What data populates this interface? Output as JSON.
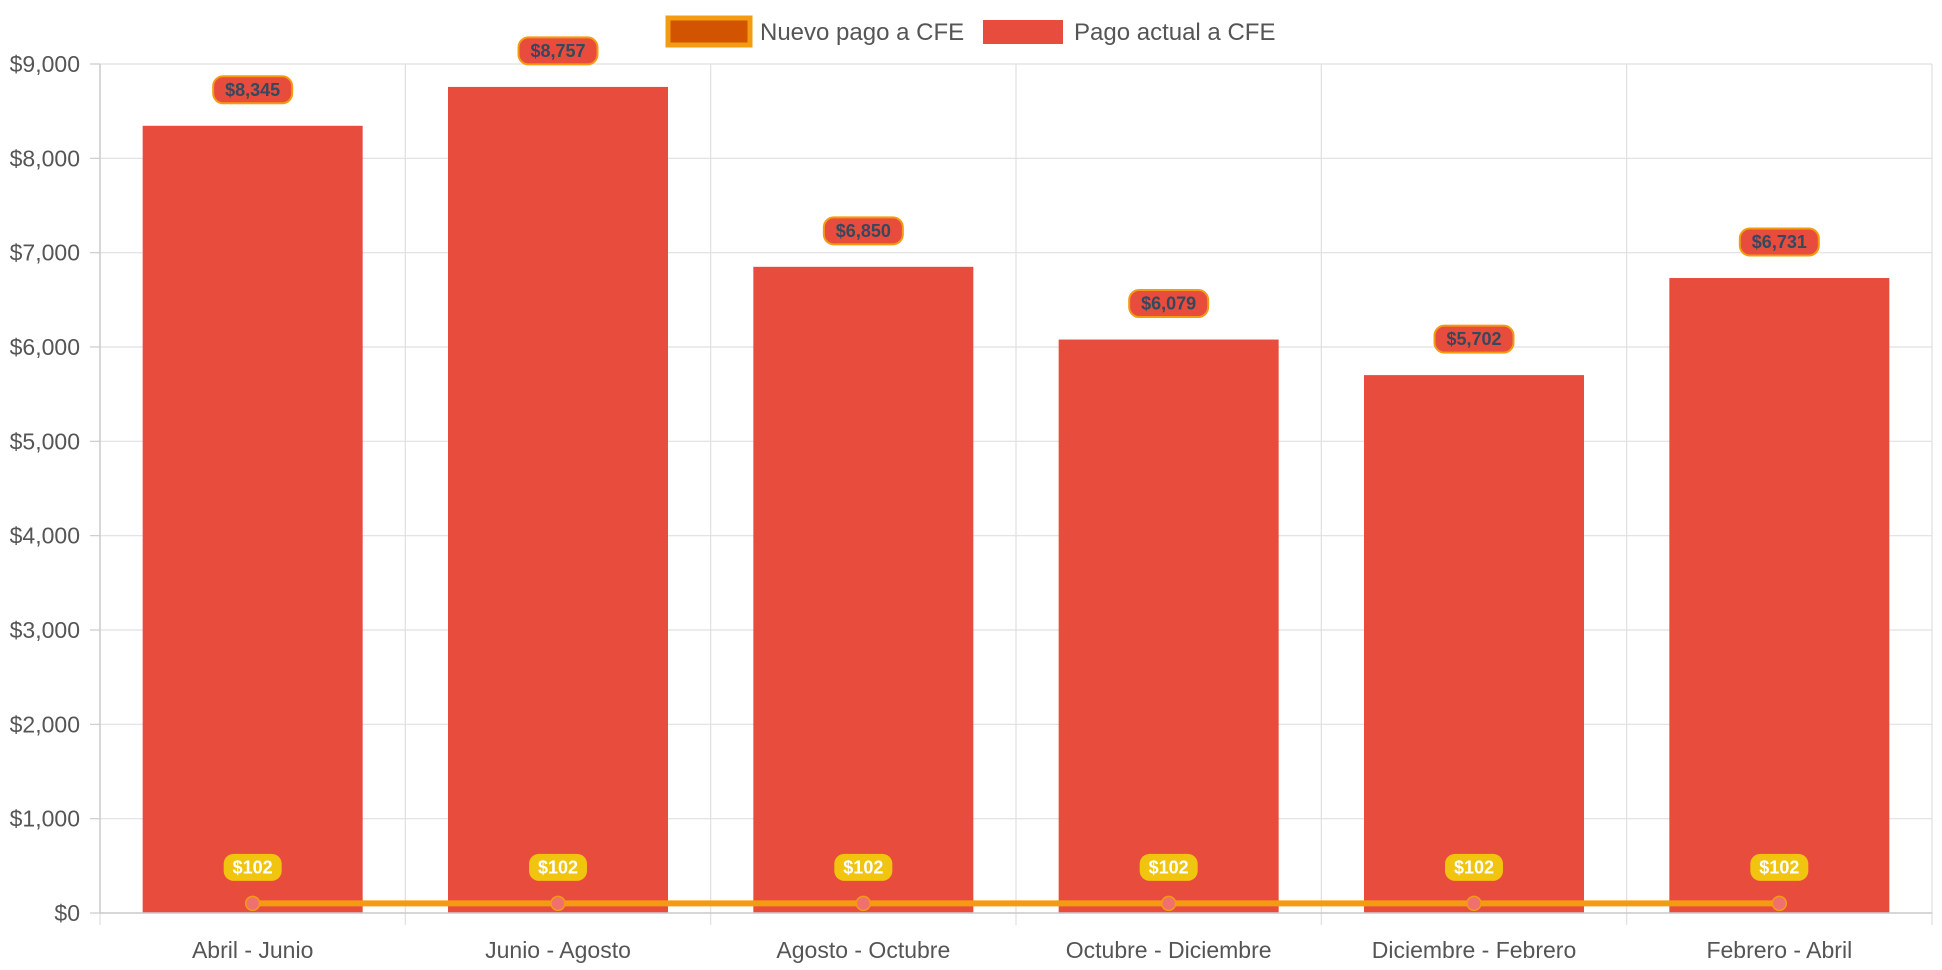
{
  "chart_data": {
    "type": "bar",
    "title": "",
    "xlabel": "",
    "ylabel": "",
    "categories": [
      "Abril - Junio",
      "Junio - Agosto",
      "Agosto - Octubre",
      "Octubre - Diciembre",
      "Diciembre - Febrero",
      "Febrero - Abril"
    ],
    "series": [
      {
        "name": "Nuevo pago a CFE",
        "kind": "line",
        "values": [
          102,
          102,
          102,
          102,
          102,
          102
        ],
        "labels": [
          "$102",
          "$102",
          "$102",
          "$102",
          "$102",
          "$102"
        ],
        "color": "#f39c12",
        "fill_color": "#d35400",
        "point_color": "#f07070",
        "label_bg": "#f1c40f",
        "label_text_color": "#ffffff"
      },
      {
        "name": "Pago actual a CFE",
        "kind": "bar",
        "values": [
          8345,
          8757,
          6850,
          6079,
          5702,
          6731
        ],
        "labels": [
          "$8,345",
          "$8,757",
          "$6,850",
          "$6,079",
          "$5,702",
          "$6,731"
        ],
        "color": "#e74c3c",
        "label_bg": "#e74c3c",
        "label_border": "#f39c12",
        "label_text_color": "#34495e"
      }
    ],
    "ylim": [
      0,
      9000
    ],
    "y_ticks": [
      "$0",
      "$1,000",
      "$2,000",
      "$3,000",
      "$4,000",
      "$5,000",
      "$6,000",
      "$7,000",
      "$8,000",
      "$9,000"
    ],
    "grid": true,
    "legend": "top-center"
  }
}
